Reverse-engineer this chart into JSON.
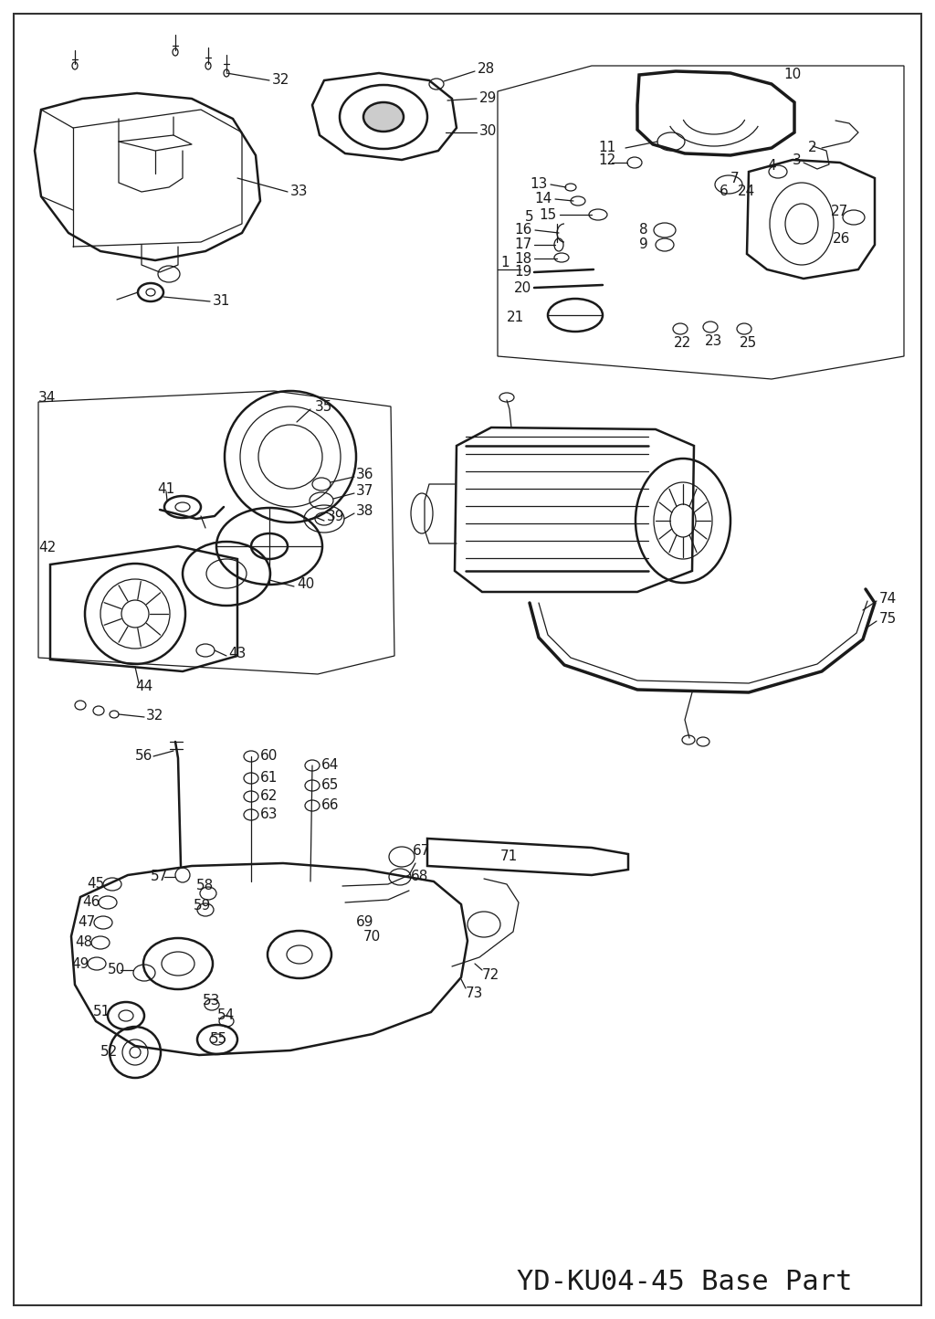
{
  "title": "YD-KU04-45 Base Part",
  "title_fontsize": 22,
  "title_color": "#1a1a1a",
  "bg_color": "#ffffff",
  "border_color": "#333333",
  "border_linewidth": 1.5,
  "fig_width": 10.24,
  "fig_height": 14.44,
  "dpi": 100,
  "lc": "#1a1a1a",
  "lw_main": 1.8,
  "lw_thin": 0.9,
  "lw_thick": 2.5
}
